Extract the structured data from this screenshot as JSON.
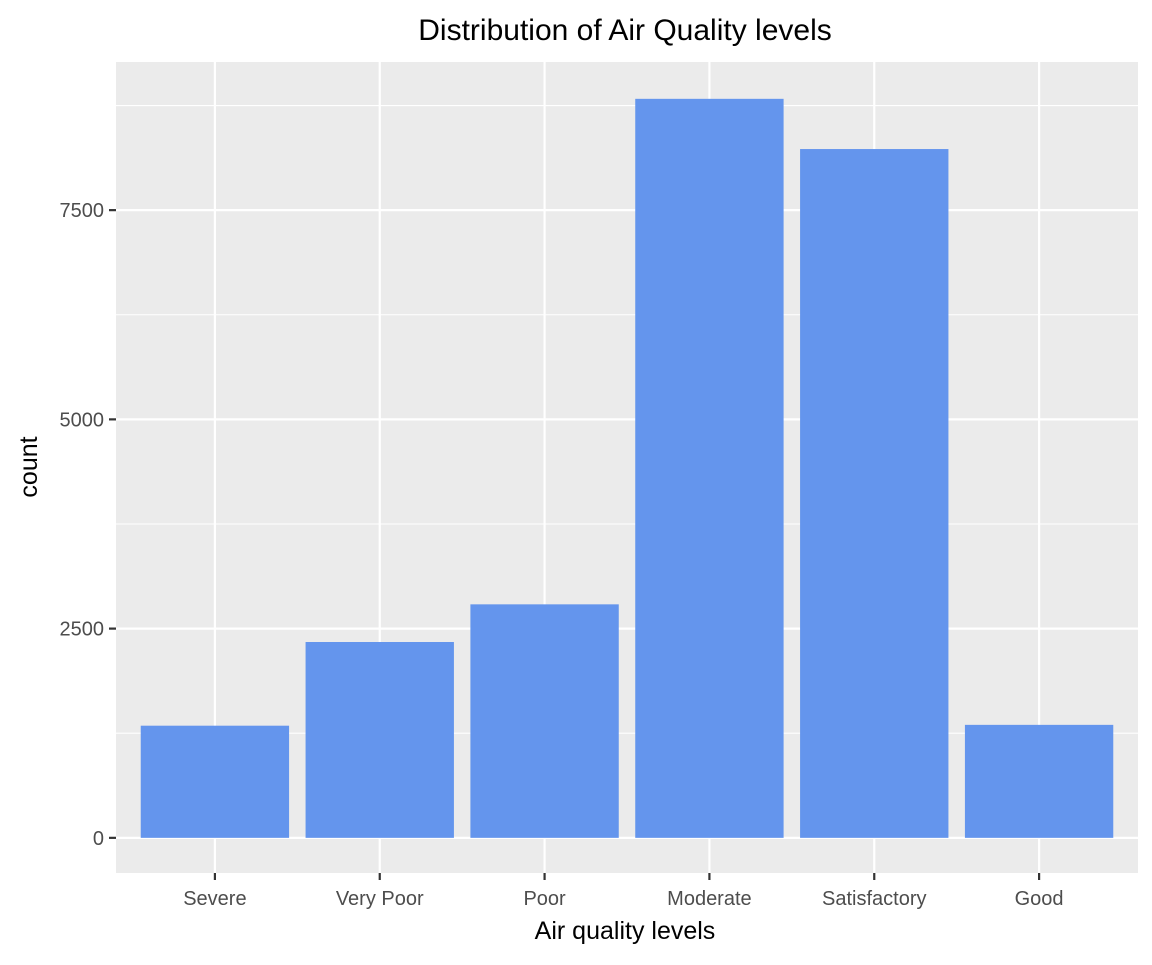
{
  "chart_data": {
    "type": "bar",
    "title": "Distribution of Air Quality levels",
    "xlabel": "Air quality levels",
    "ylabel": "count",
    "categories": [
      "Severe",
      "Very Poor",
      "Poor",
      "Moderate",
      "Satisfactory",
      "Good"
    ],
    "values": [
      1340,
      2340,
      2790,
      8830,
      8230,
      1350
    ],
    "ylim": [
      -420,
      9270
    ],
    "yticks": [
      0,
      2500,
      5000,
      7500
    ],
    "ytick_labels": [
      "0",
      "2500",
      "5000",
      "7500"
    ],
    "grid": true,
    "legend": "none",
    "colors": {
      "bar": "#6495ED",
      "panel": "#EBEBEB",
      "grid": "#FFFFFF",
      "tick": "#333333"
    }
  }
}
